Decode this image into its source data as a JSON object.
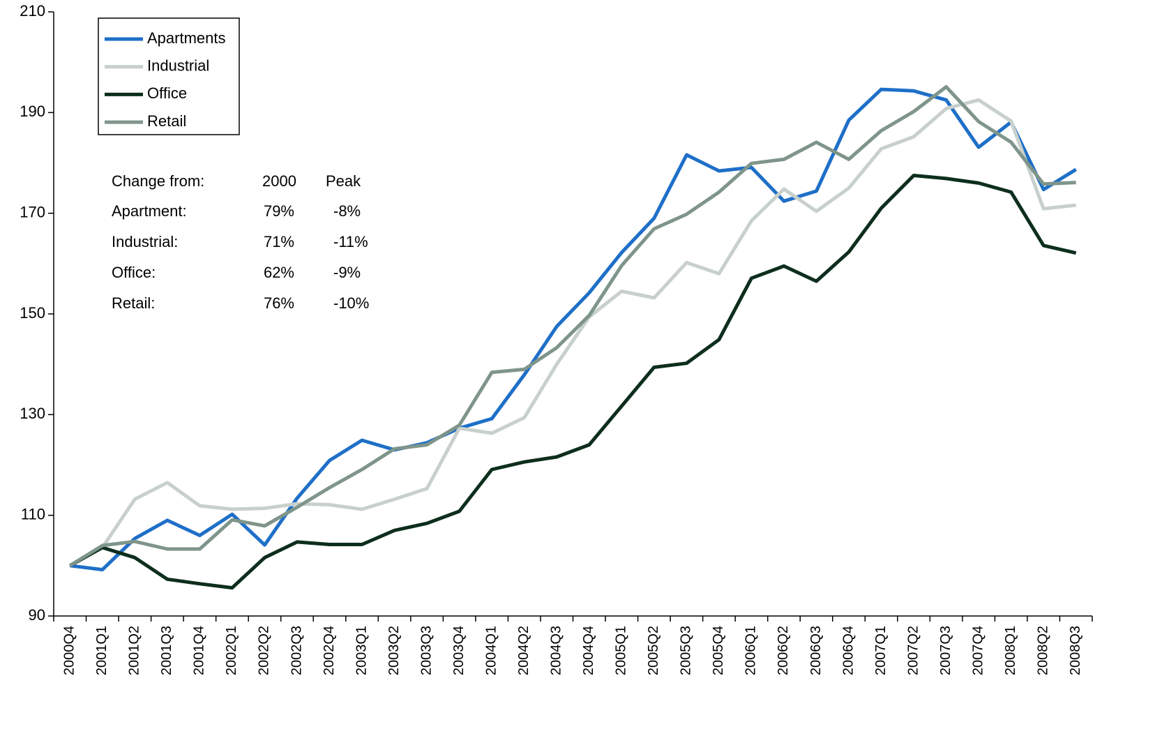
{
  "chart_data": {
    "type": "line",
    "categories": [
      "2000Q4",
      "2001Q1",
      "2001Q2",
      "2001Q3",
      "2001Q4",
      "2002Q1",
      "2002Q2",
      "2002Q3",
      "2002Q4",
      "2003Q1",
      "2003Q2",
      "2003Q3",
      "2003Q4",
      "2004Q1",
      "2004Q2",
      "2004Q3",
      "2004Q4",
      "2005Q1",
      "2005Q2",
      "2005Q3",
      "2005Q4",
      "2006Q1",
      "2006Q2",
      "2006Q3",
      "2006Q4",
      "2007Q1",
      "2007Q2",
      "2007Q3",
      "2007Q4",
      "2008Q1",
      "2008Q2",
      "2008Q3"
    ],
    "series": [
      {
        "name": "Apartments",
        "color": "#1e6fc8",
        "values": [
          100,
          99.2,
          105.4,
          109,
          106,
          110.2,
          104.1,
          113.4,
          120.9,
          124.9,
          123,
          124.4,
          127.3,
          129.2,
          137.9,
          147.5,
          154.2,
          162.2,
          169,
          181.6,
          178.4,
          179.1,
          172.4,
          174.4,
          188.5,
          194.6,
          194.3,
          192.5,
          183.1,
          188.1,
          174.7,
          178.7
        ]
      },
      {
        "name": "Industrial",
        "color": "#c8d0cc",
        "values": [
          100,
          103.6,
          113.2,
          116.5,
          111.9,
          111.2,
          111.4,
          112.3,
          112.1,
          111.2,
          113.2,
          115.3,
          127.3,
          126.3,
          129.4,
          140,
          149.4,
          154.5,
          153.2,
          160.2,
          158,
          168.5,
          174.8,
          170.4,
          175,
          182.8,
          185.2,
          190.8,
          192.5,
          188.3,
          170.9,
          171.6
        ]
      },
      {
        "name": "Office",
        "color": "#0d2e1c",
        "values": [
          100,
          103.6,
          101.6,
          97.3,
          96.4,
          95.6,
          101.6,
          104.7,
          104.2,
          104.2,
          107,
          108.4,
          110.8,
          119.1,
          120.6,
          121.6,
          124,
          131.7,
          139.4,
          140.2,
          144.9,
          157.1,
          159.5,
          156.5,
          162.3,
          171,
          177.5,
          176.9,
          176,
          174.2,
          163.6,
          162.1
        ]
      },
      {
        "name": "Retail",
        "color": "#7f958a",
        "values": [
          100,
          104,
          104.8,
          103.3,
          103.3,
          109.1,
          107.9,
          111.6,
          115.5,
          119.1,
          123.2,
          124,
          127.9,
          138.4,
          139,
          143.3,
          149.7,
          159.6,
          166.9,
          169.8,
          174.2,
          179.9,
          180.7,
          184.1,
          180.7,
          186.4,
          190.2,
          195.1,
          188.2,
          184.1,
          175.8,
          176.1
        ]
      }
    ],
    "ylim": [
      90,
      210
    ],
    "yticks": [
      90,
      110,
      130,
      150,
      170,
      190,
      210
    ],
    "grid": false,
    "legend": "upper left",
    "annotation_table": {
      "header": [
        "Change from:",
        "2000",
        "Peak"
      ],
      "rows": [
        [
          "Apartment:",
          "79%",
          "-8%"
        ],
        [
          "Industrial:",
          "71%",
          "-11%"
        ],
        [
          "Office:",
          "62%",
          "-9%"
        ],
        [
          "Retail:",
          "76%",
          "-10%"
        ]
      ]
    }
  }
}
